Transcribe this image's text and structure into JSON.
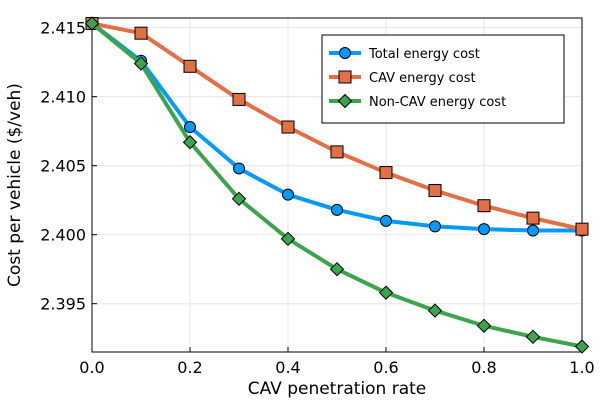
{
  "chart_data": {
    "type": "line",
    "title": "",
    "xlabel": "CAV penetration rate",
    "ylabel": "Cost per vehicle ($/veh)",
    "xlim": [
      0.0,
      1.0
    ],
    "ylim": [
      2.3915,
      2.4157
    ],
    "x_ticks": [
      0.0,
      0.2,
      0.4,
      0.6,
      0.8,
      1.0
    ],
    "x_tick_labels": [
      "0.0",
      "0.2",
      "0.4",
      "0.6",
      "0.8",
      "1.0"
    ],
    "y_ticks": [
      2.395,
      2.4,
      2.405,
      2.41,
      2.415
    ],
    "y_tick_labels": [
      "2.395",
      "2.400",
      "2.405",
      "2.410",
      "2.415"
    ],
    "grid": true,
    "legend_position": "top-right",
    "x": [
      0.0,
      0.1,
      0.2,
      0.3,
      0.4,
      0.5,
      0.6,
      0.7,
      0.8,
      0.9,
      1.0
    ],
    "series": [
      {
        "name": "Total energy cost",
        "color": "#009AFA",
        "marker": "circle",
        "values": [
          2.4153,
          2.4126,
          2.4078,
          2.4048,
          2.4029,
          2.4018,
          2.401,
          2.4006,
          2.4004,
          2.4003,
          2.4003
        ]
      },
      {
        "name": "CAV energy cost",
        "color": "#E26F46",
        "marker": "square",
        "values": [
          2.4153,
          2.4146,
          2.4122,
          2.4098,
          2.4078,
          2.406,
          2.4045,
          2.4032,
          2.4021,
          2.4012,
          2.4004
        ]
      },
      {
        "name": "Non-CAV energy cost",
        "color": "#3DA44D",
        "marker": "diamond",
        "values": [
          2.4153,
          2.4124,
          2.4067,
          2.4026,
          2.3997,
          2.3975,
          2.3958,
          2.3945,
          2.3934,
          2.3926,
          2.3919
        ]
      }
    ]
  }
}
